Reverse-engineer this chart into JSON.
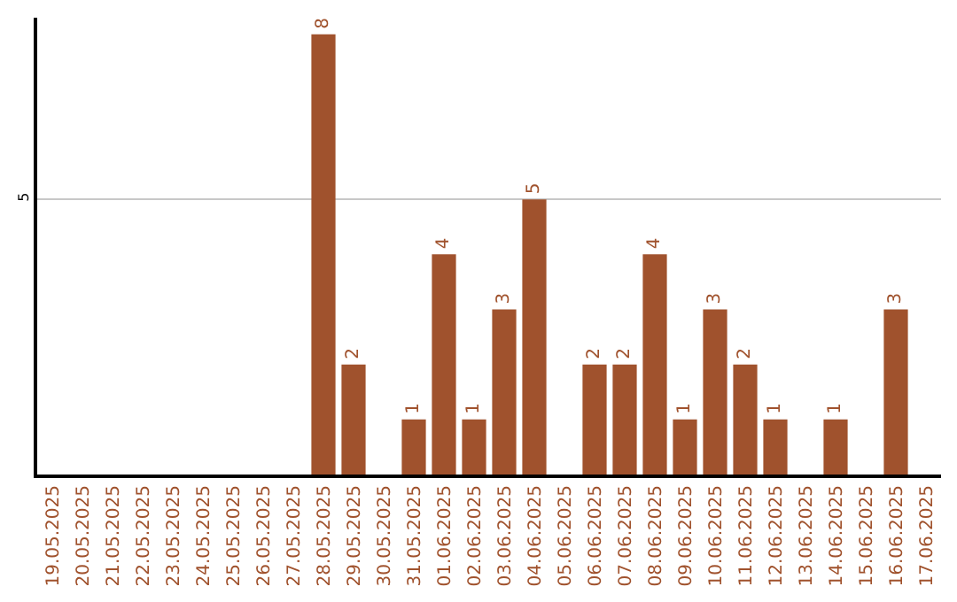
{
  "chart_data": {
    "type": "bar",
    "categories": [
      "19.05.2025",
      "20.05.2025",
      "21.05.2025",
      "22.05.2025",
      "23.05.2025",
      "24.05.2025",
      "25.05.2025",
      "26.05.2025",
      "27.05.2025",
      "28.05.2025",
      "29.05.2025",
      "30.05.2025",
      "31.05.2025",
      "01.06.2025",
      "02.06.2025",
      "03.06.2025",
      "04.06.2025",
      "05.06.2025",
      "06.06.2025",
      "07.06.2025",
      "08.06.2025",
      "09.06.2025",
      "10.06.2025",
      "11.06.2025",
      "12.06.2025",
      "13.06.2025",
      "14.06.2025",
      "15.06.2025",
      "16.06.2025",
      "17.06.2025"
    ],
    "values": [
      0,
      0,
      0,
      0,
      0,
      0,
      0,
      0,
      0,
      8,
      2,
      0,
      1,
      4,
      1,
      3,
      5,
      0,
      2,
      2,
      4,
      1,
      3,
      2,
      1,
      0,
      1,
      0,
      3,
      0
    ],
    "value_labels": [
      null,
      null,
      null,
      null,
      null,
      null,
      null,
      null,
      null,
      "8",
      "2",
      null,
      "1",
      "4",
      "1",
      "3",
      "5",
      null,
      "2",
      "2",
      "4",
      "1",
      "3",
      "2",
      "1",
      null,
      "1",
      null,
      "3",
      null
    ],
    "color": "#a0522d",
    "ylim": [
      0,
      8.3
    ],
    "yticks": [
      5
    ],
    "grid": "y",
    "legend": false
  }
}
